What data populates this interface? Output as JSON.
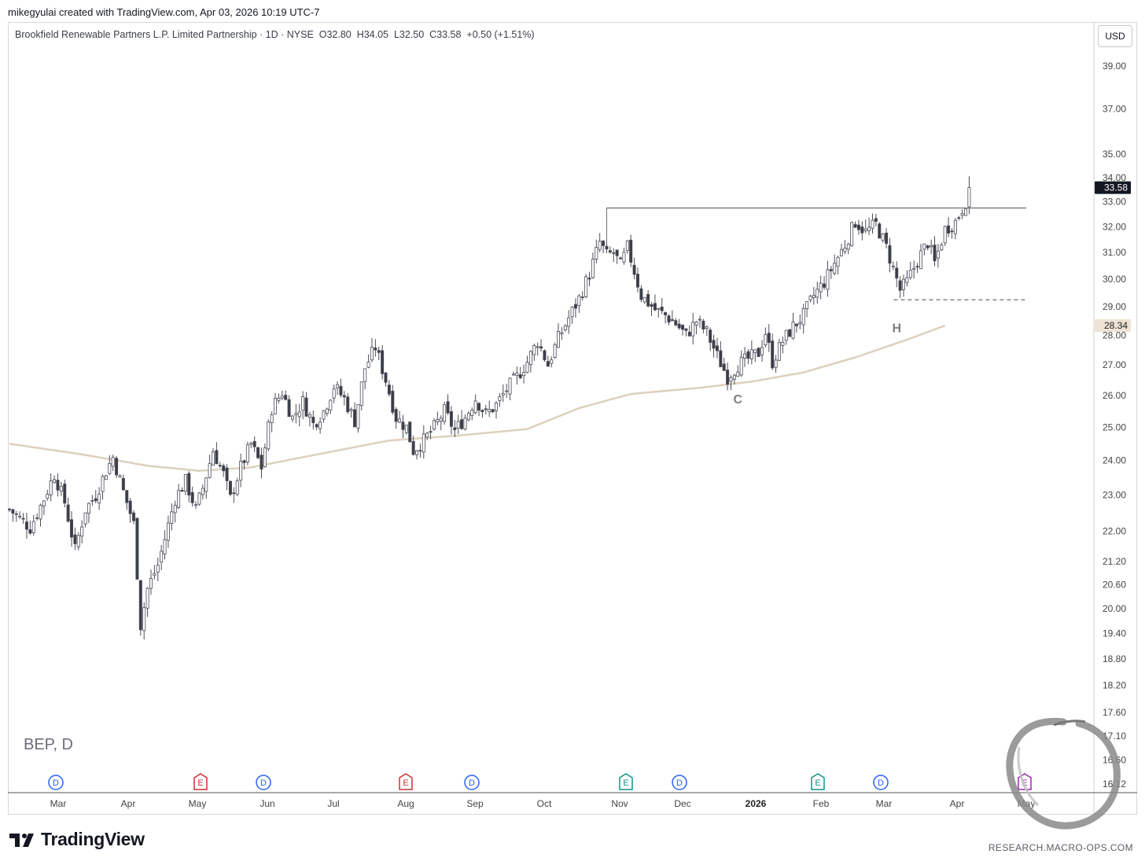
{
  "header": {
    "caption": "mikegyulai created with TradingView.com, Apr 03, 2026 10:19 UTC-7",
    "legend": "Brookfield Renewable Partners L.P. Limited Partnership · 1D · NYSE  O32.80  H34.05  L32.50  C33.58  +0.50 (+1.51%)",
    "currency": "USD"
  },
  "symbol_tag": "BEP, D",
  "footer": {
    "brand": "TradingView",
    "watermark": "RESEARCH.MACRO-OPS.COM"
  },
  "colors": {
    "up_candle": "#ffffff",
    "down_candle": "#3a3d47",
    "candle_border": "#4a4d57",
    "moving_average": "#ddd0bd",
    "last_price_badge": "#131722",
    "ma_badge": "#eee3d4",
    "dividend_marker": "#2962ff",
    "earnings_past": "#d32f2f",
    "earnings_recent": "#089981",
    "earnings_upcoming": "#9c27b0"
  },
  "chart_data": {
    "type": "candlestick",
    "y_scale": "log",
    "ylim": [
      16.0,
      40.2
    ],
    "y_ticks": [
      "39.00",
      "37.00",
      "35.00",
      "34.00",
      "33.00",
      "32.00",
      "31.00",
      "30.00",
      "29.00",
      "28.00",
      "27.00",
      "26.00",
      "25.00",
      "24.00",
      "23.00",
      "22.00",
      "21.20",
      "20.60",
      "20.00",
      "19.40",
      "18.80",
      "18.20",
      "17.60",
      "17.10",
      "16.60",
      "16.12"
    ],
    "x_ticks": [
      "Mar",
      "Apr",
      "May",
      "Jun",
      "Jul",
      "Aug",
      "Sep",
      "Oct",
      "Nov",
      "Dec",
      "2026",
      "Feb",
      "Mar",
      "Apr",
      "May"
    ],
    "x_bold_tick": "2026",
    "last_price": "33.58",
    "ma_value": "28.34",
    "ohlc": {
      "open": 32.8,
      "high": 34.05,
      "low": 32.5,
      "close": 33.58,
      "change": 0.5,
      "change_pct": 1.51
    },
    "price_path": [
      [
        0,
        22.6
      ],
      [
        6,
        22.1
      ],
      [
        10,
        22.9
      ],
      [
        13,
        23.6
      ],
      [
        16,
        22.8
      ],
      [
        19,
        21.5
      ],
      [
        22,
        22.6
      ],
      [
        25,
        23.0
      ],
      [
        28,
        23.7
      ],
      [
        30,
        24.1
      ],
      [
        33,
        23.1
      ],
      [
        36,
        22.2
      ],
      [
        38,
        19.6
      ],
      [
        40,
        20.5
      ],
      [
        43,
        21.1
      ],
      [
        45,
        21.8
      ],
      [
        48,
        22.9
      ],
      [
        51,
        23.4
      ],
      [
        54,
        22.6
      ],
      [
        56,
        23.2
      ],
      [
        59,
        24.3
      ],
      [
        62,
        23.6
      ],
      [
        64,
        22.9
      ],
      [
        67,
        23.8
      ],
      [
        70,
        24.5
      ],
      [
        73,
        23.8
      ],
      [
        76,
        25.6
      ],
      [
        79,
        26.1
      ],
      [
        82,
        25.3
      ],
      [
        85,
        25.8
      ],
      [
        88,
        25.1
      ],
      [
        91,
        25.5
      ],
      [
        94,
        26.3
      ],
      [
        97,
        25.9
      ],
      [
        100,
        25.2
      ],
      [
        103,
        26.9
      ],
      [
        106,
        27.6
      ],
      [
        109,
        26.5
      ],
      [
        112,
        25.3
      ],
      [
        115,
        25.0
      ],
      [
        117,
        24.3
      ],
      [
        120,
        24.6
      ],
      [
        123,
        25.0
      ],
      [
        126,
        25.5
      ],
      [
        129,
        24.9
      ],
      [
        132,
        25.3
      ],
      [
        135,
        25.9
      ],
      [
        138,
        25.4
      ],
      [
        141,
        25.7
      ],
      [
        144,
        26.2
      ],
      [
        147,
        26.6
      ],
      [
        150,
        27.1
      ],
      [
        153,
        27.8
      ],
      [
        156,
        27.0
      ],
      [
        159,
        27.9
      ],
      [
        162,
        28.6
      ],
      [
        165,
        29.3
      ],
      [
        168,
        30.2
      ],
      [
        171,
        31.4
      ],
      [
        173,
        30.9
      ],
      [
        175,
        31.0
      ],
      [
        177,
        30.5
      ],
      [
        179,
        31.2
      ],
      [
        183,
        29.4
      ],
      [
        187,
        28.9
      ],
      [
        190,
        28.7
      ],
      [
        193,
        28.4
      ],
      [
        196,
        28.0
      ],
      [
        199,
        28.5
      ],
      [
        202,
        28.1
      ],
      [
        205,
        27.3
      ],
      [
        208,
        26.6
      ],
      [
        211,
        27.0
      ],
      [
        214,
        27.2
      ],
      [
        217,
        27.4
      ],
      [
        219,
        28.1
      ],
      [
        221,
        27.1
      ],
      [
        224,
        27.8
      ],
      [
        227,
        28.3
      ],
      [
        230,
        28.7
      ],
      [
        233,
        29.4
      ],
      [
        236,
        29.9
      ],
      [
        239,
        30.6
      ],
      [
        242,
        31.3
      ],
      [
        245,
        32.2
      ],
      [
        248,
        31.8
      ],
      [
        251,
        32.1
      ],
      [
        254,
        31.2
      ],
      [
        256,
        30.4
      ],
      [
        258,
        29.6
      ],
      [
        260,
        29.9
      ],
      [
        263,
        30.7
      ],
      [
        266,
        31.4
      ],
      [
        268,
        30.6
      ],
      [
        271,
        31.9
      ],
      [
        274,
        32.2
      ],
      [
        277,
        33.0
      ],
      [
        278,
        33.6
      ]
    ],
    "ma_path": [
      [
        0,
        24.5
      ],
      [
        20,
        24.2
      ],
      [
        40,
        23.85
      ],
      [
        55,
        23.7
      ],
      [
        70,
        23.8
      ],
      [
        90,
        24.2
      ],
      [
        110,
        24.6
      ],
      [
        130,
        24.75
      ],
      [
        150,
        24.95
      ],
      [
        165,
        25.6
      ],
      [
        180,
        26.05
      ],
      [
        200,
        26.25
      ],
      [
        215,
        26.45
      ],
      [
        230,
        26.75
      ],
      [
        245,
        27.25
      ],
      [
        260,
        27.85
      ],
      [
        271,
        28.34
      ]
    ],
    "annotations": [
      {
        "label": "C",
        "bar": 211,
        "price": 26.25
      },
      {
        "label": "H",
        "bar": 257,
        "price": 28.65
      }
    ],
    "resistance_line": {
      "price": 32.75,
      "from_bar": 173,
      "to_bar": 290,
      "style": "solid"
    },
    "support_line": {
      "price": 29.25,
      "from_bar": 255,
      "to_bar": 290,
      "style": "dashed"
    },
    "events": [
      {
        "type": "D",
        "month": "Mar",
        "kind": "dividend"
      },
      {
        "type": "E",
        "month": "May",
        "kind": "earnings-past"
      },
      {
        "type": "D",
        "month": "Jun",
        "kind": "dividend"
      },
      {
        "type": "E",
        "month": "Aug",
        "kind": "earnings-past"
      },
      {
        "type": "D",
        "month": "Sep",
        "kind": "dividend"
      },
      {
        "type": "E",
        "month": "Nov",
        "kind": "earnings-recent"
      },
      {
        "type": "D",
        "month": "Dec",
        "kind": "dividend"
      },
      {
        "type": "E",
        "month": "Feb",
        "kind": "earnings-recent"
      },
      {
        "type": "D",
        "month": "Mar",
        "kind": "dividend"
      },
      {
        "type": "E",
        "month": "May",
        "kind": "earnings-upcoming"
      }
    ]
  }
}
